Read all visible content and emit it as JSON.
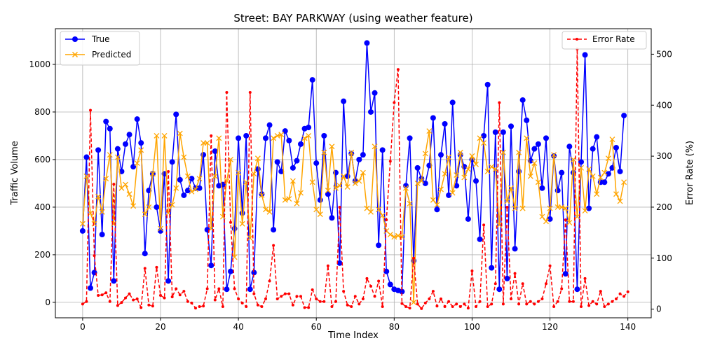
{
  "chart_data": {
    "type": "line",
    "title": "Street: BAY PARKWAY (using weather feature)",
    "xlabel": "Time Index",
    "ylabel_left": "Traffic Volume",
    "ylabel_right": "Error Rate (%)",
    "xlim": [
      -7,
      146
    ],
    "ylim_left": [
      -65,
      1150
    ],
    "ylim_right": [
      -17,
      550
    ],
    "x_ticks": [
      0,
      20,
      40,
      60,
      80,
      100,
      120,
      140
    ],
    "y_ticks_left": [
      0,
      200,
      400,
      600,
      800,
      1000
    ],
    "y_ticks_right": [
      0,
      100,
      200,
      300,
      400,
      500
    ],
    "grid": true,
    "legend_left": {
      "position": "upper left",
      "entries": [
        "True",
        "Predicted"
      ]
    },
    "legend_right": {
      "position": "upper right",
      "entries": [
        "Error Rate"
      ]
    },
    "series": [
      {
        "name": "True",
        "axis": "left",
        "color": "#0000ff",
        "marker": "circle",
        "values": [
          300,
          610,
          60,
          125,
          640,
          285,
          760,
          730,
          90,
          645,
          550,
          665,
          705,
          570,
          770,
          670,
          205,
          470,
          540,
          400,
          300,
          540,
          90,
          590,
          790,
          515,
          450,
          470,
          520,
          480,
          480,
          620,
          305,
          155,
          635,
          490,
          495,
          55,
          130,
          310,
          690,
          375,
          700,
          55,
          125,
          560,
          455,
          690,
          745,
          305,
          590,
          550,
          720,
          680,
          565,
          595,
          665,
          730,
          735,
          935,
          585,
          430,
          700,
          455,
          355,
          545,
          165,
          845,
          530,
          625,
          510,
          600,
          620,
          1090,
          800,
          880,
          240,
          640,
          130,
          75,
          55,
          50,
          45,
          490,
          690,
          175,
          565,
          520,
          500,
          575,
          775,
          390,
          620,
          750,
          450,
          840,
          490,
          620,
          570,
          350,
          600,
          510,
          265,
          700,
          915,
          145,
          715,
          55,
          715,
          100,
          740,
          225,
          550,
          850,
          765,
          595,
          645,
          665,
          480,
          690,
          350,
          615,
          470,
          545,
          120,
          655,
          545,
          55,
          590,
          1040,
          395,
          645,
          695,
          505,
          505,
          540,
          565,
          650,
          550,
          785
        ]
      },
      {
        "name": "Predicted",
        "axis": "left",
        "color": "#ffa500",
        "marker": "x",
        "values": [
          330,
          530,
          375,
          330,
          445,
          380,
          520,
          620,
          330,
          610,
          480,
          495,
          455,
          405,
          585,
          640,
          370,
          400,
          540,
          700,
          310,
          700,
          375,
          410,
          480,
          710,
          610,
          530,
          465,
          475,
          520,
          670,
          670,
          310,
          530,
          690,
          360,
          510,
          600,
          190,
          545,
          330,
          505,
          270,
          540,
          605,
          450,
          390,
          380,
          690,
          700,
          705,
          430,
          435,
          510,
          415,
          460,
          690,
          700,
          505,
          390,
          370,
          630,
          470,
          655,
          480,
          490,
          530,
          485,
          630,
          500,
          510,
          545,
          395,
          380,
          655,
          390,
          365,
          300,
          285,
          275,
          280,
          275,
          480,
          415,
          0,
          500,
          510,
          625,
          720,
          430,
          410,
          475,
          540,
          610,
          460,
          535,
          630,
          525,
          560,
          615,
          580,
          690,
          670,
          550,
          570,
          560,
          325,
          630,
          425,
          480,
          395,
          630,
          395,
          690,
          530,
          585,
          505,
          360,
          340,
          395,
          620,
          400,
          400,
          395,
          335,
          600,
          360,
          565,
          385,
          560,
          530,
          455,
          525,
          545,
          605,
          685,
          455,
          425,
          505
        ]
      },
      {
        "name": "Error Rate",
        "axis": "right",
        "color": "#ff0000",
        "marker": "dot",
        "dashed": true,
        "values": [
          10,
          15,
          390,
          105,
          27,
          28,
          32,
          15,
          245,
          7,
          13,
          22,
          30,
          18,
          20,
          3,
          80,
          8,
          6,
          82,
          27,
          22,
          270,
          24,
          40,
          28,
          35,
          15,
          12,
          2,
          5,
          6,
          40,
          340,
          18,
          40,
          5,
          425,
          170,
          40,
          20,
          12,
          5,
          425,
          30,
          8,
          5,
          20,
          55,
          125,
          20,
          25,
          30,
          30,
          8,
          25,
          25,
          3,
          3,
          38,
          20,
          15,
          15,
          85,
          5,
          15,
          200,
          35,
          8,
          5,
          25,
          10,
          20,
          60,
          45,
          25,
          55,
          5,
          175,
          290,
          405,
          470,
          11,
          5,
          2,
          100,
          10,
          1,
          12,
          20,
          35,
          6,
          20,
          5,
          15,
          5,
          10,
          5,
          10,
          2,
          75,
          5,
          15,
          165,
          5,
          10,
          50,
          405,
          10,
          200,
          20,
          70,
          10,
          50,
          10,
          15,
          10,
          15,
          20,
          50,
          85,
          5,
          15,
          40,
          175,
          15,
          15,
          510,
          5,
          60,
          7,
          15,
          10,
          35,
          5,
          10,
          15,
          20,
          30,
          25,
          34
        ]
      }
    ]
  }
}
